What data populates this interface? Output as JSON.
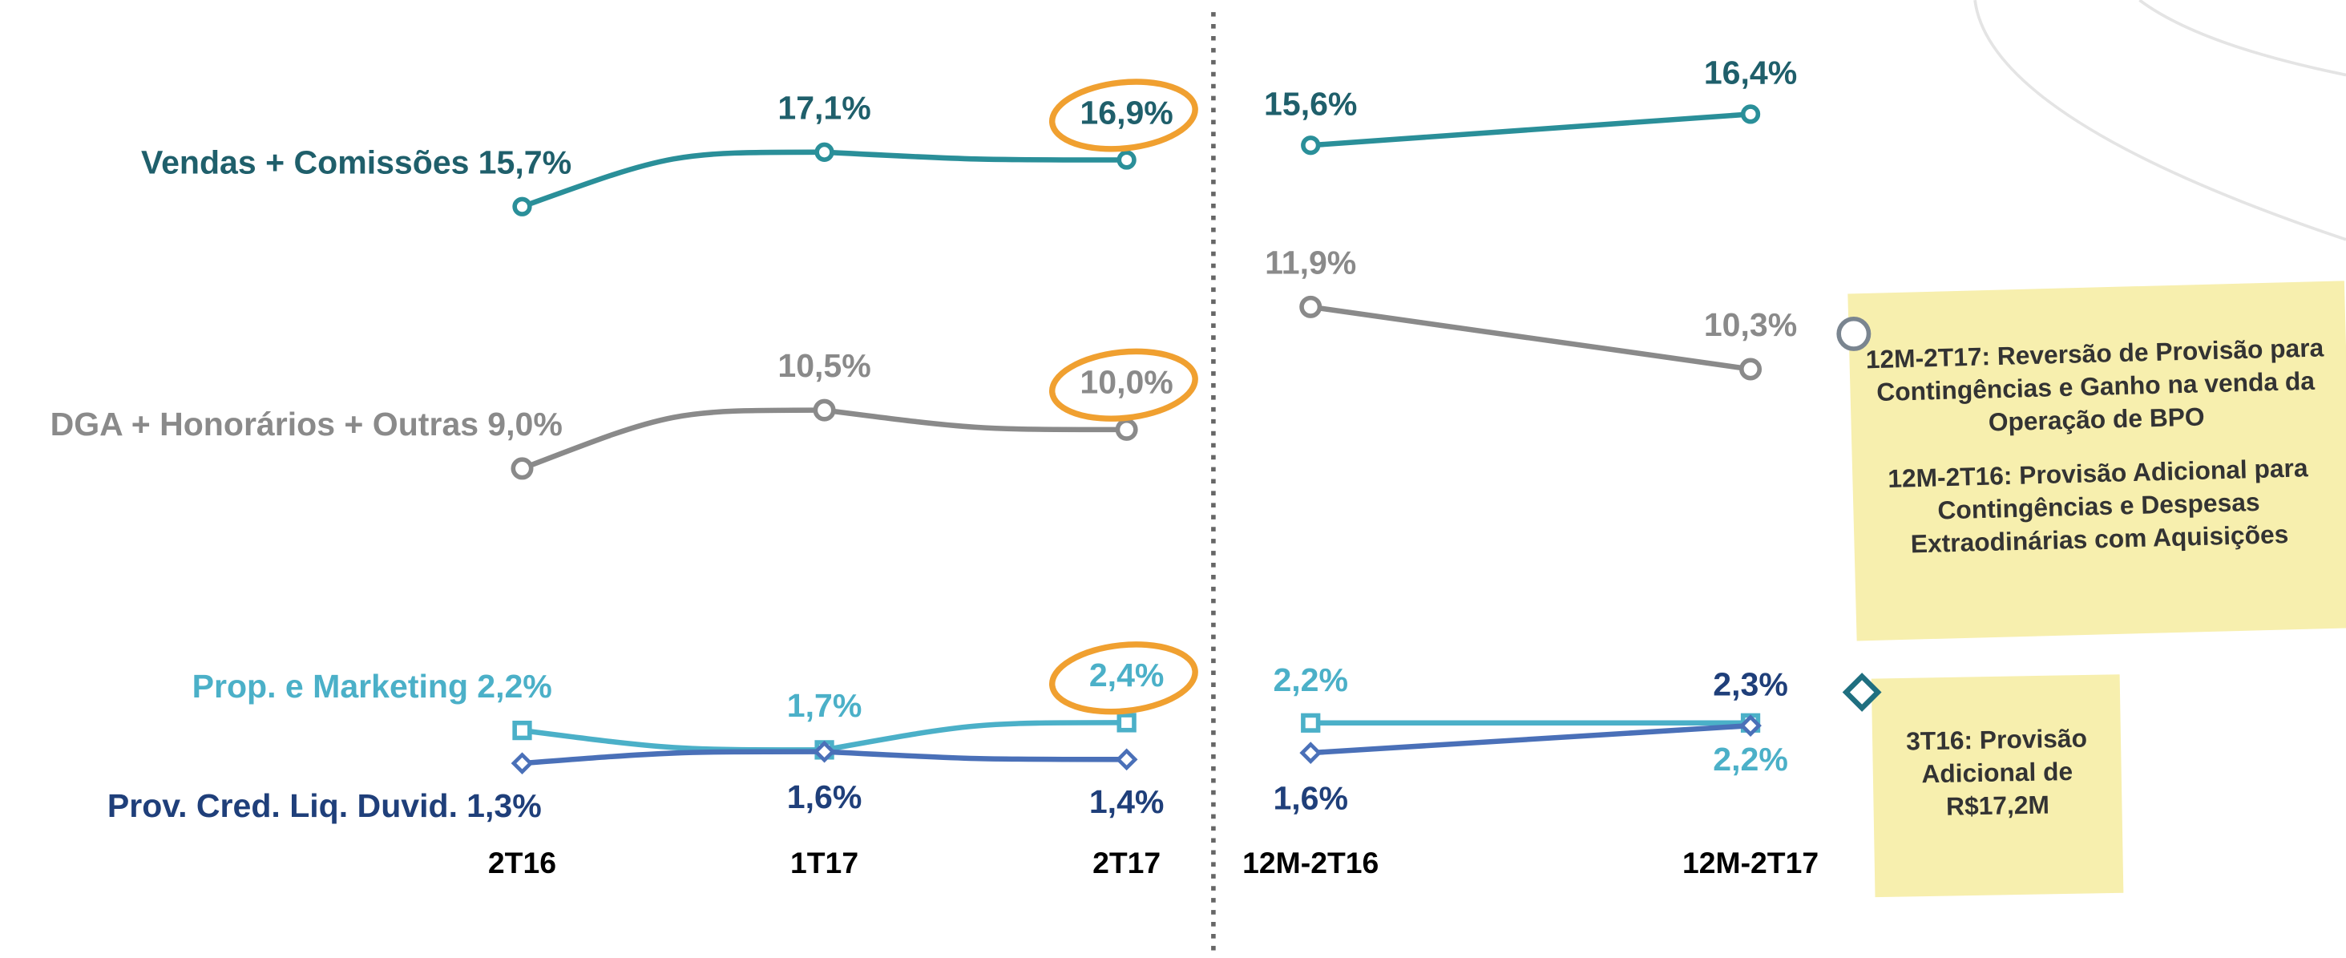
{
  "chart_data": [
    {
      "type": "line",
      "categories": [
        "2T16",
        "1T17",
        "2T17"
      ],
      "series": [
        {
          "name": "Vendas + Comissões",
          "color": "#2a8f99",
          "values": [
            15.7,
            17.1,
            16.9
          ],
          "value_labels": [
            "15,7%",
            "17,1%",
            "16,9%"
          ]
        },
        {
          "name": "DGA + Honorários + Outras",
          "color": "#8a8a8a",
          "values": [
            9.0,
            10.5,
            10.0
          ],
          "value_labels": [
            "9,0%",
            "10,5%",
            "10,0%"
          ]
        },
        {
          "name": "Prop. e Marketing",
          "color": "#4bb0c8",
          "values": [
            2.2,
            1.7,
            2.4
          ],
          "value_labels": [
            "2,2%",
            "1,7%",
            "2,4%"
          ]
        },
        {
          "name": "Prov. Cred. Liq. Duvid.",
          "color": "#4a70b8",
          "values": [
            1.3,
            1.6,
            1.4
          ],
          "value_labels": [
            "1,3%",
            "1,6%",
            "1,4%"
          ]
        }
      ]
    },
    {
      "type": "line",
      "categories": [
        "12M-2T16",
        "12M-2T17"
      ],
      "series": [
        {
          "color": "#2a8f99",
          "values": [
            15.6,
            16.4
          ],
          "value_labels": [
            "15,6%",
            "16,4%"
          ]
        },
        {
          "color": "#8a8a8a",
          "values": [
            11.9,
            10.3
          ],
          "value_labels": [
            "11,9%",
            "10,3%"
          ]
        },
        {
          "color": "#4bb0c8",
          "values": [
            2.2,
            2.2
          ],
          "value_labels": [
            "2,2%",
            "2,2%"
          ]
        },
        {
          "color": "#4a70b8",
          "values": [
            1.6,
            2.3
          ],
          "value_labels": [
            "1,6%",
            "2,3%"
          ]
        }
      ]
    }
  ],
  "notes": [
    "12M-2T17: Reversão de Provisão para Contingências e Ganho na venda da Operação de BPO",
    "12M-2T16: Provisão Adicional para Contingências e Despesas Extraodinárias com Aquisições",
    "3T16: Provisão Adicional de R$17,2M"
  ]
}
